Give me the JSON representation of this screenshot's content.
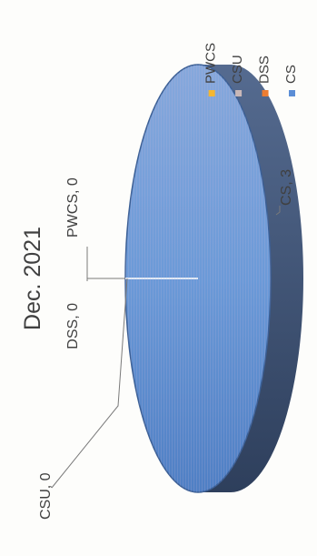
{
  "chart_data": {
    "type": "pie",
    "title": "Dec. 2021",
    "categories": [
      "CS",
      "DSS",
      "CSU",
      "PWCS"
    ],
    "values": [
      3,
      0,
      0,
      0
    ],
    "data_labels": [
      "CS, 3",
      "DSS, 0",
      "CSU, 0",
      "PWCS, 0"
    ],
    "colors": {
      "CS": "#5b8ed6",
      "DSS": "#ed7d31",
      "CSU": "#c9b8b8",
      "PWCS": "#f5b731"
    },
    "legend": {
      "position": "right",
      "items": [
        "CS",
        "DSS",
        "CSU",
        "PWCS"
      ]
    },
    "style": "3d-pie",
    "orientation": "rotated-90-ccw"
  }
}
